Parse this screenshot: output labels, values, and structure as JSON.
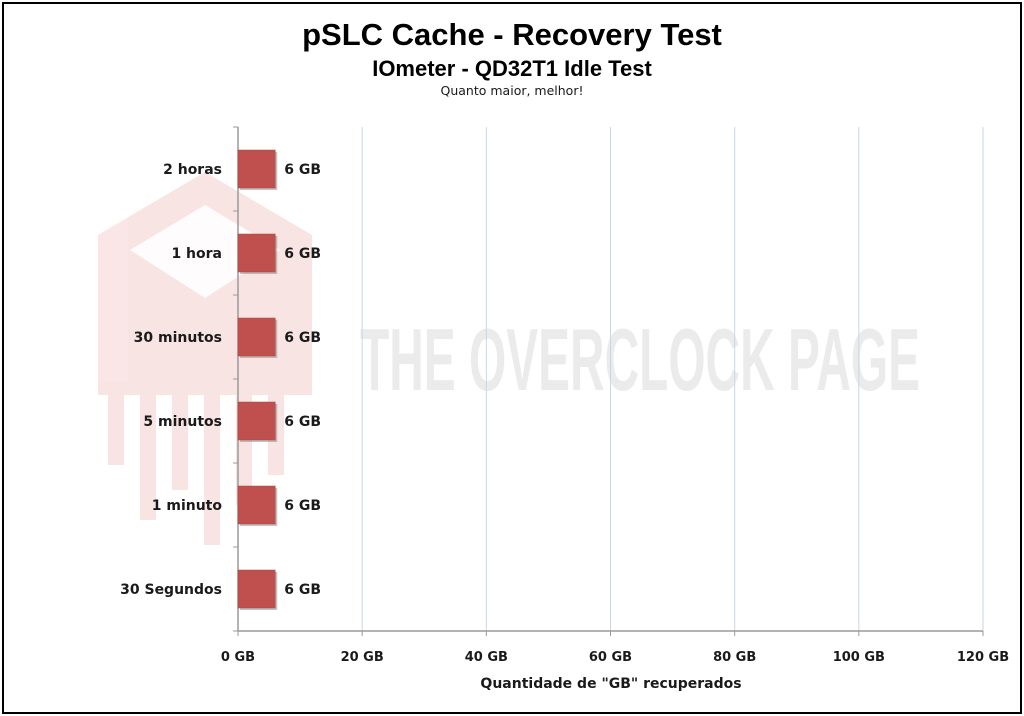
{
  "chart_data": {
    "type": "bar",
    "orientation": "horizontal",
    "title": "pSLC Cache - Recovery Test",
    "subtitle": "IOmeter - QD32T1 Idle Test",
    "note": "Quanto maior, melhor!",
    "xlabel": "Quantidade de \"GB\" recuperados",
    "ylabel": "",
    "categories": [
      "2 horas",
      "1 hora",
      "30 minutos",
      "5 minutos",
      "1 minuto",
      "30 Segundos"
    ],
    "values": [
      6,
      6,
      6,
      6,
      6,
      6
    ],
    "value_labels": [
      "6 GB",
      "6 GB",
      "6 GB",
      "6 GB",
      "6 GB",
      "6 GB"
    ],
    "xlim": [
      0,
      120
    ],
    "x_ticks": [
      0,
      20,
      40,
      60,
      80,
      100,
      120
    ],
    "x_tick_labels": [
      "0 GB",
      "20 GB",
      "40 GB",
      "60 GB",
      "80 GB",
      "100 GB",
      "120 GB"
    ],
    "grid": "vertical",
    "legend": "none",
    "colors": {
      "bar": "#c0504d",
      "grid": "#c6d7ea",
      "axis": "#9a9a9a"
    }
  },
  "watermark": "THE OVERCLOCK PAGE"
}
